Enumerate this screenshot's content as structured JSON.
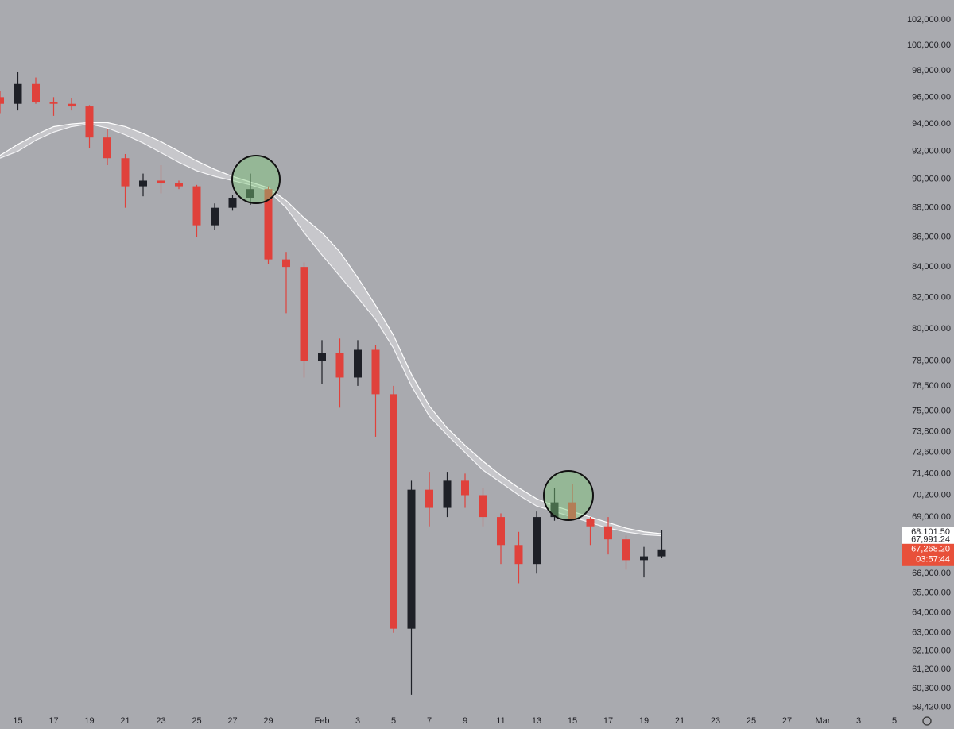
{
  "chart_data": {
    "type": "candlestick",
    "log_scale": true,
    "ylim": [
      59250,
      103624
    ],
    "yticks": [
      {
        "value": 102000,
        "label": "102,000.00"
      },
      {
        "value": 100000,
        "label": "100,000.00"
      },
      {
        "value": 98000,
        "label": "98,000.00"
      },
      {
        "value": 96000,
        "label": "96,000.00"
      },
      {
        "value": 94000,
        "label": "94,000.00"
      },
      {
        "value": 92000,
        "label": "92,000.00"
      },
      {
        "value": 90000,
        "label": "90,000.00"
      },
      {
        "value": 88000,
        "label": "88,000.00"
      },
      {
        "value": 86000,
        "label": "86,000.00"
      },
      {
        "value": 84000,
        "label": "84,000.00"
      },
      {
        "value": 82000,
        "label": "82,000.00"
      },
      {
        "value": 80000,
        "label": "80,000.00"
      },
      {
        "value": 78000,
        "label": "78,000.00"
      },
      {
        "value": 76500,
        "label": "76,500.00"
      },
      {
        "value": 75000,
        "label": "75,000.00"
      },
      {
        "value": 73800,
        "label": "73,800.00"
      },
      {
        "value": 72600,
        "label": "72,600.00"
      },
      {
        "value": 71400,
        "label": "71,400.00"
      },
      {
        "value": 70200,
        "label": "70,200.00"
      },
      {
        "value": 69000,
        "label": "69,000.00"
      },
      {
        "value": 66000,
        "label": "66,000.00"
      },
      {
        "value": 65000,
        "label": "65,000.00"
      },
      {
        "value": 64000,
        "label": "64,000.00"
      },
      {
        "value": 63000,
        "label": "63,000.00"
      },
      {
        "value": 62100,
        "label": "62,100.00"
      },
      {
        "value": 61200,
        "label": "61,200.00"
      },
      {
        "value": 60300,
        "label": "60,300.00"
      },
      {
        "value": 59420,
        "label": "59,420.00"
      }
    ],
    "categories": [
      null,
      "15",
      null,
      "17",
      null,
      "19",
      null,
      "21",
      null,
      "23",
      null,
      "25",
      null,
      "27",
      null,
      "29",
      null,
      null,
      "Feb",
      null,
      "3",
      null,
      "5",
      null,
      "7",
      null,
      "9",
      null,
      "11",
      null,
      "13",
      null,
      "15",
      null,
      "17",
      null,
      "19",
      null,
      "21",
      null,
      "23",
      null,
      "25",
      null,
      "27",
      null,
      "Mar",
      null,
      "3",
      null,
      "5"
    ],
    "open": [
      96000,
      95500,
      97000,
      95600,
      95500,
      95300,
      93000,
      91500,
      89500,
      89900,
      89700,
      89500,
      86800,
      88000,
      88700,
      89300,
      84500,
      84000,
      78000,
      78500,
      77000,
      78700,
      76000,
      63200,
      70500,
      69500,
      71000,
      70200,
      69000,
      67500,
      66500,
      69000,
      69800,
      68900,
      68500,
      67800,
      66700,
      66900,
      null,
      null,
      null,
      null,
      null,
      null,
      null,
      null,
      null,
      null,
      null,
      null,
      null
    ],
    "high": [
      96500,
      97900,
      97500,
      96000,
      95900,
      95400,
      93600,
      91800,
      90400,
      91000,
      89900,
      89600,
      88300,
      88900,
      90400,
      89500,
      85000,
      84300,
      79300,
      79400,
      79300,
      79000,
      76500,
      71000,
      71500,
      71500,
      71400,
      70600,
      69200,
      68200,
      69300,
      70600,
      70800,
      69000,
      69000,
      68000,
      67400,
      68300,
      null,
      null,
      null,
      null,
      null,
      null,
      null,
      null,
      null,
      null,
      null,
      null,
      null
    ],
    "low": [
      94800,
      95000,
      95500,
      94600,
      95000,
      92200,
      91000,
      88000,
      88800,
      89000,
      89300,
      86000,
      86500,
      87800,
      88200,
      84200,
      81000,
      77000,
      76600,
      75200,
      76500,
      73500,
      63000,
      60000,
      68500,
      69000,
      69500,
      68500,
      66500,
      65500,
      66000,
      68800,
      68900,
      67500,
      67000,
      66200,
      65800,
      66800,
      null,
      null,
      null,
      null,
      null,
      null,
      null,
      null,
      null,
      null,
      null,
      null,
      null
    ],
    "close": [
      95500,
      97000,
      95600,
      95500,
      95300,
      93000,
      91500,
      89500,
      89900,
      89700,
      89500,
      86800,
      88000,
      88700,
      89300,
      84500,
      84000,
      78000,
      78500,
      77000,
      78700,
      76000,
      63200,
      70500,
      69500,
      71000,
      70200,
      69000,
      67500,
      66500,
      69000,
      69800,
      68900,
      68500,
      67800,
      66700,
      66900,
      67268.2,
      null,
      null,
      null,
      null,
      null,
      null,
      null,
      null,
      null,
      null,
      null,
      null,
      null
    ],
    "up_color": "#1e2027",
    "down_color": "#e0413b",
    "series": [
      {
        "color": "#ffffff",
        "values": [
          91700,
          92500,
          93200,
          93800,
          94000,
          94100,
          94100,
          93800,
          93300,
          92700,
          92000,
          91300,
          90700,
          90200,
          89800,
          89400,
          88500,
          87300,
          86300,
          85000,
          83300,
          81500,
          79600,
          77200,
          75300,
          74000,
          73000,
          72100,
          71300,
          70600,
          70000,
          69600,
          69300,
          69000,
          68700,
          68400,
          68200,
          68101.5,
          null,
          null,
          null,
          null,
          null,
          null,
          null,
          null,
          null,
          null,
          null,
          null,
          null
        ]
      },
      {
        "color": "#f4f4f6",
        "values": [
          91500,
          92000,
          92800,
          93400,
          93800,
          94000,
          93700,
          93200,
          92600,
          91900,
          91200,
          90600,
          90200,
          89900,
          89600,
          89200,
          88000,
          86300,
          84800,
          83400,
          82000,
          80600,
          78800,
          76500,
          74700,
          73600,
          72600,
          71600,
          70900,
          70200,
          69600,
          69300,
          69000,
          68700,
          68400,
          68200,
          68050,
          67991.24,
          null,
          null,
          null,
          null,
          null,
          null,
          null,
          null,
          null,
          null,
          null,
          null,
          null
        ]
      }
    ],
    "price_tags": [
      {
        "value": 68101.5,
        "label": "68,101.50",
        "color": "#ffffff"
      },
      {
        "value": 67991.24,
        "label": "67,991.24",
        "color": "#ffffff"
      },
      {
        "value": 67268.2,
        "label": "67,268.20",
        "color": "#e8503a"
      }
    ],
    "countdown": "03:57:44"
  }
}
